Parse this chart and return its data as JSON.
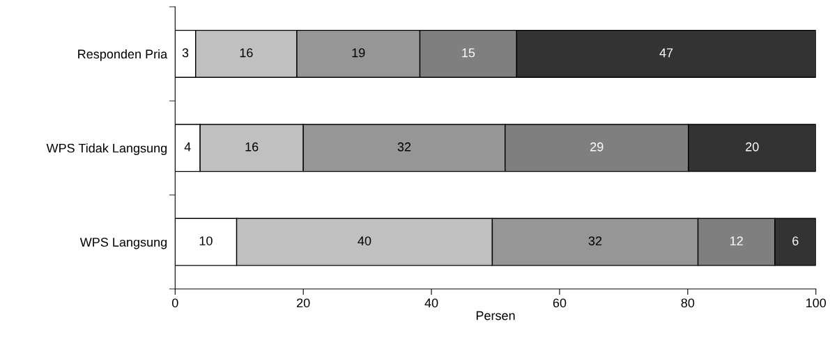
{
  "chart_data": {
    "type": "bar",
    "orientation": "horizontal",
    "stacked": true,
    "xlabel": "Persen",
    "categories": [
      "Responden Pria",
      "WPS Tidak Langsung",
      "WPS Langsung"
    ],
    "series": [
      {
        "color": "#ffffff",
        "values": [
          3.2,
          3.9,
          9.6
        ],
        "value_labels": [
          "3",
          "4",
          "10"
        ]
      },
      {
        "color": "#c0c0c0",
        "values": [
          15.8,
          16.1,
          39.9
        ],
        "value_labels": [
          "16",
          "16",
          "40"
        ]
      },
      {
        "color": "#969696",
        "values": [
          19.2,
          31.5,
          32.1
        ],
        "value_labels": [
          "19",
          "32",
          "32"
        ]
      },
      {
        "color": "#7f7f7f",
        "values": [
          15.1,
          28.6,
          12.0
        ],
        "value_labels": [
          "15",
          "29",
          "12"
        ]
      },
      {
        "color": "#333333",
        "values": [
          46.7,
          19.9,
          6.4
        ],
        "value_labels": [
          "47",
          "20",
          "6"
        ]
      }
    ],
    "xlim": [
      0,
      100
    ],
    "xticks": [
      0,
      20,
      40,
      60,
      80,
      100
    ],
    "grid": false,
    "legend": false
  }
}
